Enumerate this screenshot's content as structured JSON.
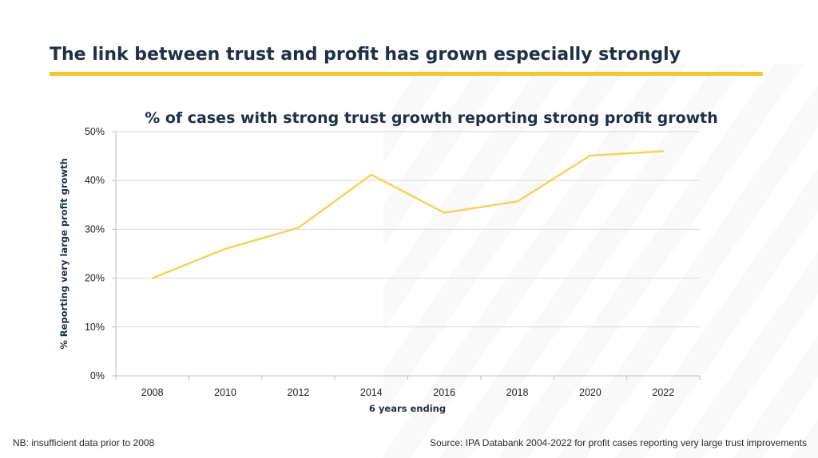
{
  "slide": {
    "title": "The link between trust and profit has grown especially strongly",
    "footnote": "NB: insufficient data prior to 2008",
    "source": "Source: IPA Databank 2004-2022 for profit cases reporting very large trust improvements"
  },
  "colors": {
    "accent": "#f2c72e",
    "line": "#f5d35e",
    "title": "#1f2f44",
    "grid": "#d9d9d9"
  },
  "chart_data": {
    "type": "line",
    "title": "% of cases with strong trust growth reporting strong profit growth",
    "xlabel": "6 years ending",
    "ylabel": "% Reporting very large profit growth",
    "x": [
      "2008",
      "2010",
      "2012",
      "2014",
      "2016",
      "2018",
      "2020",
      "2022"
    ],
    "series": [
      {
        "values": [
          20,
          26,
          30.3,
          41.2,
          33.4,
          35.7,
          45.1,
          46
        ]
      }
    ],
    "ylim": [
      0,
      50
    ],
    "yticks": [
      0,
      10,
      20,
      30,
      40,
      50
    ],
    "ytick_labels": [
      "0%",
      "10%",
      "20%",
      "30%",
      "40%",
      "50%"
    ],
    "grid": true,
    "legend": "none"
  }
}
